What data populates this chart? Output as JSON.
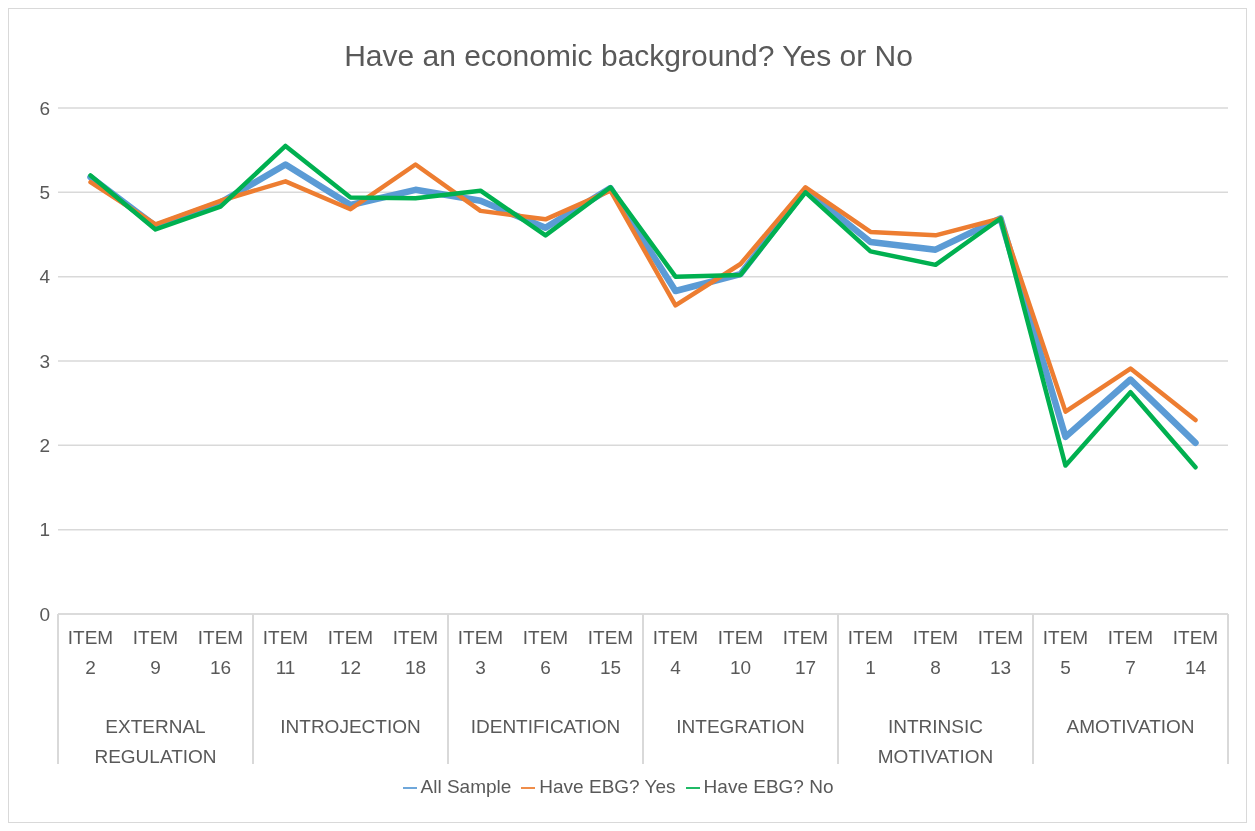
{
  "chart_data": {
    "type": "line",
    "title": "Have an economic background? Yes or No",
    "categories": [
      "ITEM 2",
      "ITEM 9",
      "ITEM 16",
      "ITEM 11",
      "ITEM 12",
      "ITEM 18",
      "ITEM 3",
      "ITEM 6",
      "ITEM 15",
      "ITEM 4",
      "ITEM 10",
      "ITEM 17",
      "ITEM 1",
      "ITEM 8",
      "ITEM 13",
      "ITEM 5",
      "ITEM 7",
      "ITEM 14"
    ],
    "annotations": [
      "EXTERNAL REGULATION",
      "INTROJECTION",
      "IDENTIFICATION",
      "INTEGRATION",
      "INTRINSIC MOTIVATION",
      "AMOTIVATION"
    ],
    "series": [
      {
        "name": "All Sample",
        "color": "#5b9bd5",
        "values": [
          5.18,
          4.6,
          4.88,
          5.33,
          4.85,
          5.03,
          4.9,
          4.58,
          5.05,
          3.83,
          4.03,
          5.03,
          4.41,
          4.32,
          4.69,
          2.1,
          2.78,
          2.03
        ]
      },
      {
        "name": "Have EBG? Yes",
        "color": "#ed7d31",
        "values": [
          5.12,
          4.62,
          4.9,
          5.13,
          4.8,
          5.33,
          4.78,
          4.68,
          5.02,
          3.66,
          4.15,
          5.06,
          4.53,
          4.49,
          4.69,
          2.4,
          2.91,
          2.3
        ]
      },
      {
        "name": "Have EBG? No",
        "color": "#00b050",
        "values": [
          5.2,
          4.56,
          4.83,
          5.55,
          4.94,
          4.93,
          5.02,
          4.49,
          5.06,
          4.0,
          4.02,
          5.0,
          4.3,
          4.14,
          4.69,
          1.76,
          2.63,
          1.74
        ]
      }
    ],
    "ylim": [
      0,
      6
    ],
    "yticks": [
      0,
      1,
      2,
      3,
      4,
      5,
      6
    ],
    "grid": "y",
    "legend": "bottom",
    "marker": "none",
    "line_style": "solid"
  }
}
